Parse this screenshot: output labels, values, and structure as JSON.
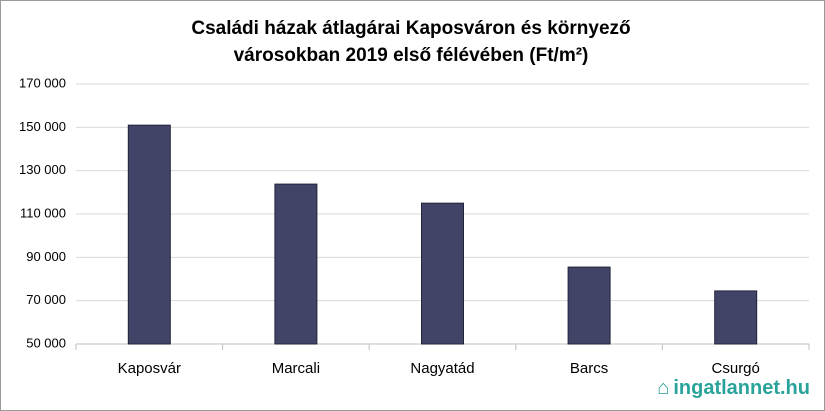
{
  "chart_data": {
    "type": "bar",
    "title": "Családi házak átlagárai Kaposváron és környező városokban 2019 első félévében (Ft/m²)",
    "categories": [
      "Kaposvár",
      "Marcali",
      "Nagyatád",
      "Barcs",
      "Csurgó"
    ],
    "values": [
      151000,
      123800,
      115000,
      85500,
      74500
    ],
    "color": "#414467",
    "ylim": [
      50000,
      170000
    ],
    "yticks": [
      {
        "value": 50000,
        "label": "50 000"
      },
      {
        "value": 70000,
        "label": "70 000"
      },
      {
        "value": 90000,
        "label": "90 000"
      },
      {
        "value": 110000,
        "label": "110 000"
      },
      {
        "value": 130000,
        "label": "130 000"
      },
      {
        "value": 150000,
        "label": "150 000"
      },
      {
        "value": 170000,
        "label": "170 000"
      }
    ],
    "grid": true
  },
  "watermark": "ingatlannet.hu"
}
